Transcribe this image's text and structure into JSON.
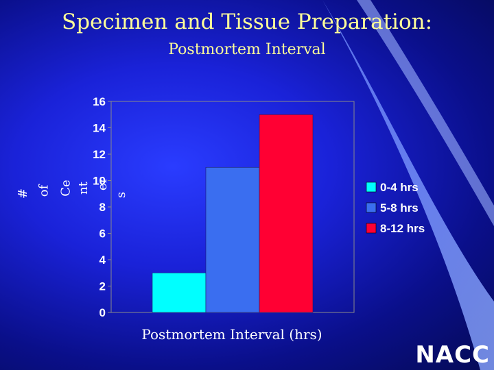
{
  "slide": {
    "title": "Specimen and Tissue Preparation:",
    "subtitle": "Postmortem Interval",
    "logo_text": "NACC",
    "title_color": "#ffff99"
  },
  "chart_data": {
    "type": "bar",
    "categories": [
      ""
    ],
    "series": [
      {
        "name": "0-4 hrs",
        "values": [
          3
        ],
        "color": "#00ffff"
      },
      {
        "name": "5-8 hrs",
        "values": [
          11
        ],
        "color": "#3a6ef0"
      },
      {
        "name": "8-12 hrs",
        "values": [
          15
        ],
        "color": "#ff0033"
      }
    ],
    "title": "",
    "xlabel": "Postmortem Interval (hrs)",
    "ylabel": "# of Ce nt er s",
    "ylabel_parts": [
      "#",
      "of",
      "Ce",
      "nt",
      "er",
      "s"
    ],
    "ylim": [
      0,
      16
    ],
    "yticks": [
      0,
      2,
      4,
      6,
      8,
      10,
      12,
      14,
      16
    ],
    "grid": false,
    "legend": "right"
  }
}
